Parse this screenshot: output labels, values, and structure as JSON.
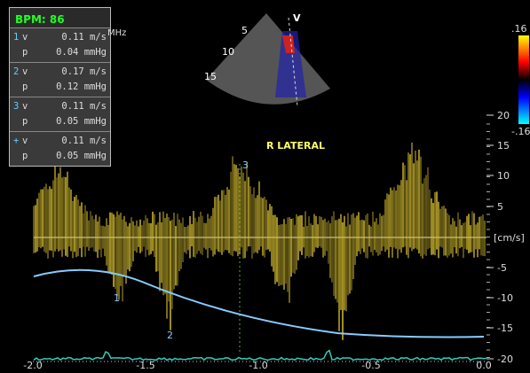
{
  "header": {
    "bpm": "BPM: 86",
    "frequency_unit": "MHz"
  },
  "measurements": [
    {
      "marker": "1",
      "v_label": "v",
      "v_value": "0.11 m/s",
      "p_label": "p",
      "p_value": "0.04 mmHg"
    },
    {
      "marker": "2",
      "v_label": "v",
      "v_value": "0.17 m/s",
      "p_label": "p",
      "p_value": "0.12 mmHg"
    },
    {
      "marker": "3",
      "v_label": "v",
      "v_value": "0.11 m/s",
      "p_label": "p",
      "p_value": "0.05 mmHg"
    },
    {
      "marker": "+",
      "v_label": "v",
      "v_value": "0.11 m/s",
      "p_label": "p",
      "p_value": "0.05 mmHg"
    }
  ],
  "sector": {
    "label": "V",
    "depths": [
      "5",
      "10",
      "15"
    ]
  },
  "view_label": "R LATERAL",
  "color_bar": {
    "top": ".16",
    "bottom": "-.16"
  },
  "velocity_scale": {
    "unit": "[cm/s]",
    "ticks": [
      "20",
      "15",
      "10",
      "5",
      "-5",
      "-10",
      "-15",
      "-20"
    ]
  },
  "time_scale": {
    "ticks": [
      "-2.0",
      "-1.5",
      "-1.0",
      "-0.5",
      "0.0"
    ]
  },
  "cursors": [
    "1",
    "2",
    "3"
  ]
}
